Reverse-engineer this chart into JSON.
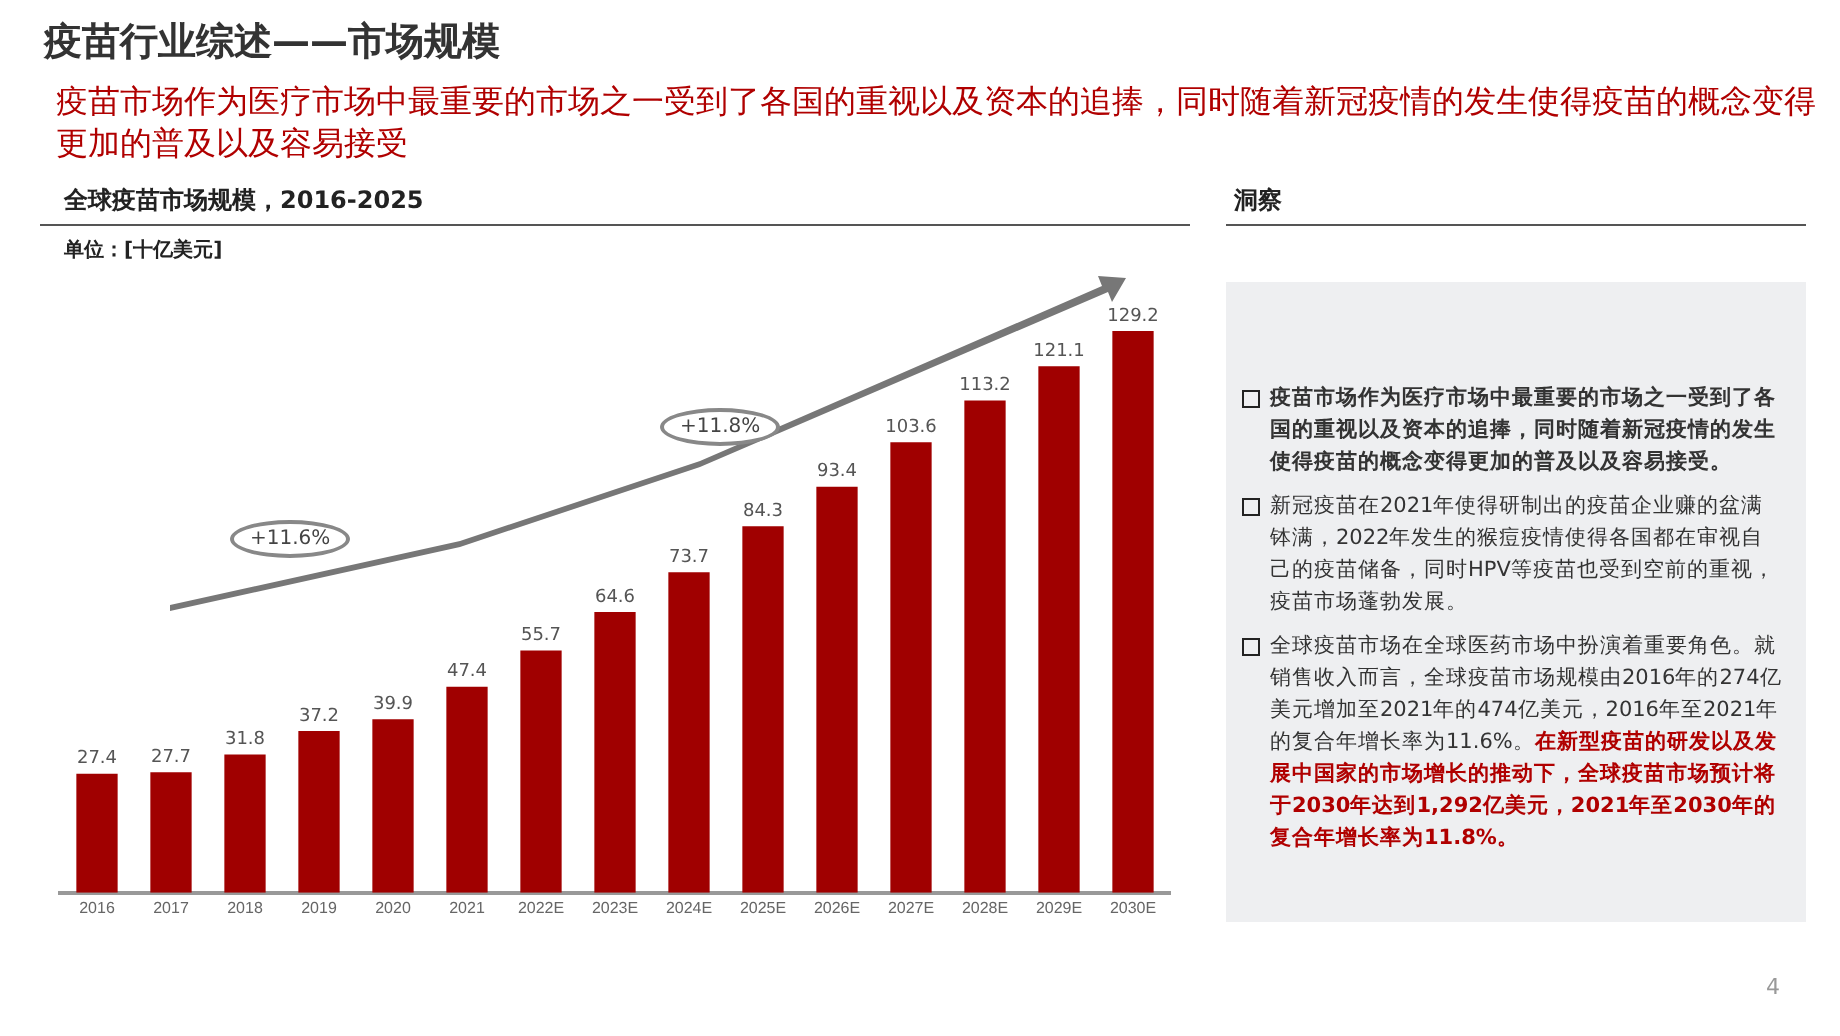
{
  "chart_data": [
    {
      "type": "other",
      "title": "疫苗行业综述——市场规模",
      "subtitle": "疫苗市场作为医疗市场中最重要的市场之一受到了各国的重视以及资本的追捧，同时随着新冠疫情的发生使得疫苗的概念变得更加的普及以及容易接受",
      "annotations": [
        "4"
      ]
    },
    {
      "type": "bar",
      "title": "全球疫苗市场规模，2016-2025",
      "subtitle": "单位：[十亿美元]",
      "categories": [
        "2016",
        "2017",
        "2018",
        "2019",
        "2020",
        "2021",
        "2022E",
        "2023E",
        "2024E",
        "2025E",
        "2026E",
        "2027E",
        "2028E",
        "2029E",
        "2030E"
      ],
      "values": [
        27.4,
        27.7,
        31.8,
        37.2,
        39.9,
        47.4,
        55.7,
        64.6,
        73.7,
        84.3,
        93.4,
        103.6,
        113.2,
        121.1,
        129.2
      ],
      "color": "#a00000",
      "data_labels": true,
      "tick_labels": "x",
      "grid": false,
      "legend": false,
      "annotations": [
        "+11.6%",
        "+11.8%"
      ]
    },
    {
      "type": "other",
      "title": "洞察",
      "annotations": [
        "疫苗市场作为医疗市场中最重要的市场之一受到了各国的重视以及资本的追捧，同时随着新冠疫情的发生使得疫苗的概念变得更加的普及以及容易接受。",
        "新冠疫苗在2021年使得研制出的疫苗企业赚的盆满钵满，2022年发生的猴痘疫情使得各国都在审视自己的疫苗储备，同时HPV等疫苗也受到空前的重视，疫苗市场蓬勃发展。",
        "全球疫苗市场在全球医药市场中扮演着重要角色。就销售收入而言，全球疫苗市场规模由2016年的274亿美元增加至2021年的474亿美元，2016年至2021年的复合年增长率为11.6%。",
        "在新型疫苗的研发以及发展中国家的市场增长的推动下，全球疫苗市场预计将于2030年达到1,292亿美元，2021年至2030年的复合年增长率为11.8%。"
      ]
    }
  ]
}
